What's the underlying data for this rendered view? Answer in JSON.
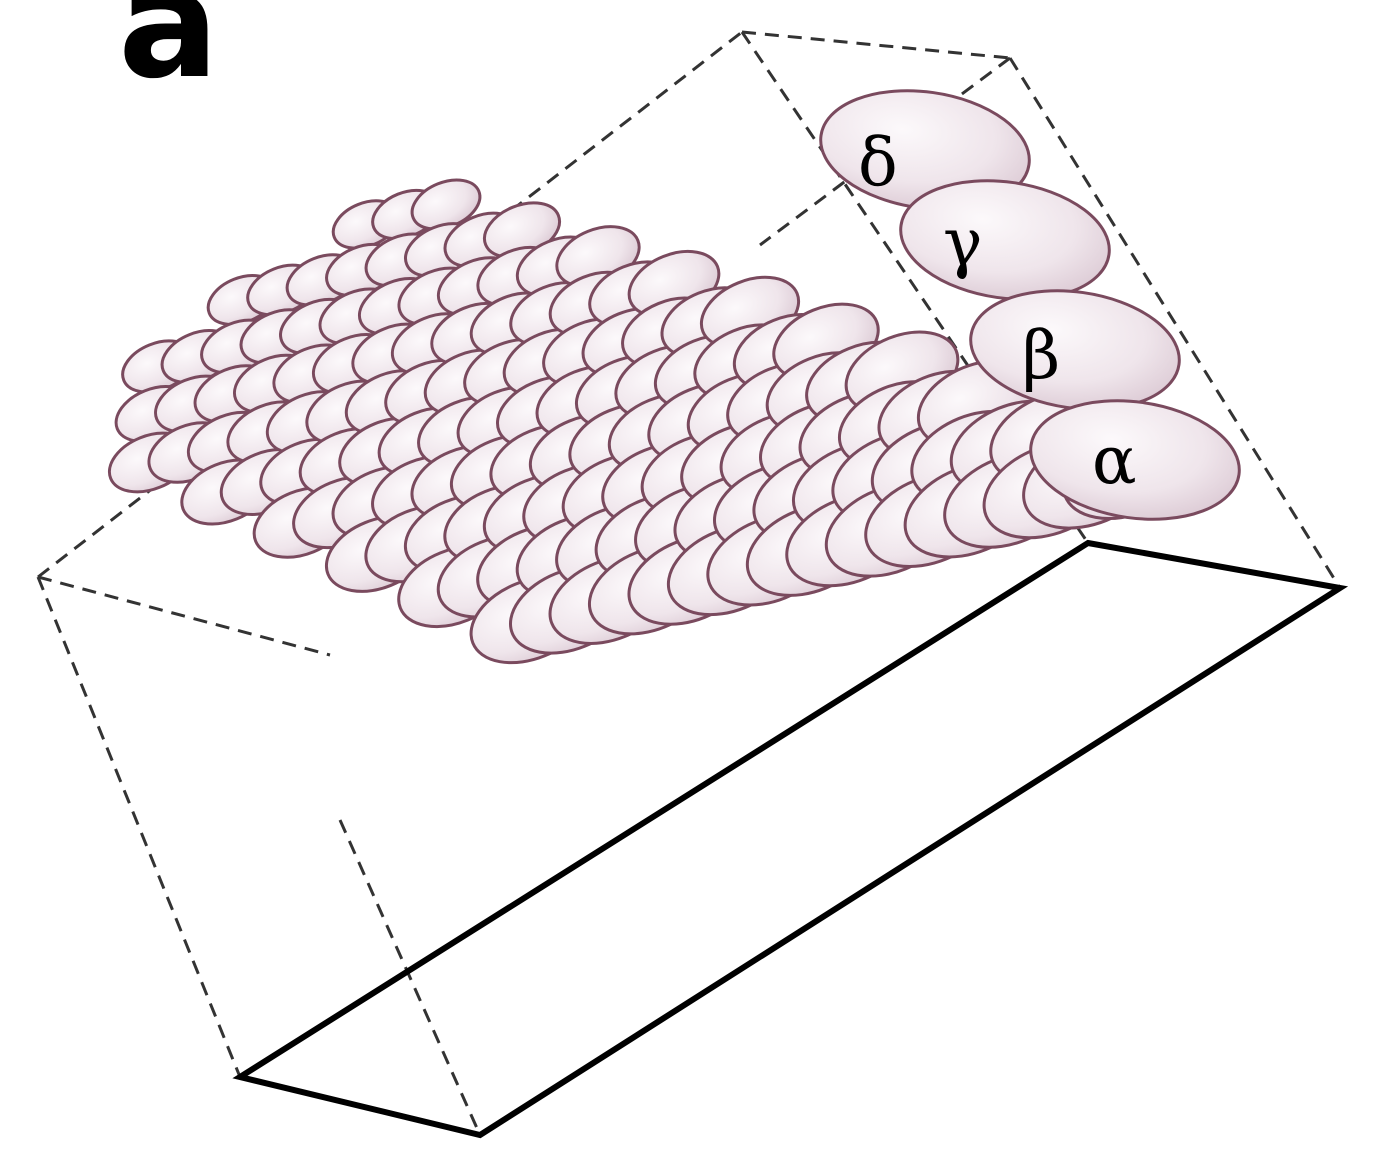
{
  "figure": {
    "panel_label": "a",
    "row_labels": [
      "δ",
      "γ",
      "β",
      "α"
    ],
    "colors": {
      "cell_fill": "#efe6ec",
      "cell_highlight": "#fbf8fa",
      "cell_outline": "#7a4a5e",
      "box_dashed": "#333333",
      "box_solid": "#000000"
    }
  }
}
